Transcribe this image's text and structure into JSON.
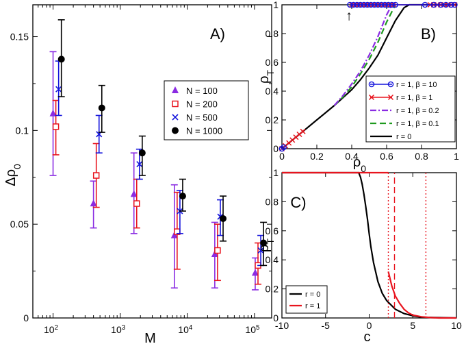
{
  "colors": {
    "purple": "#8a2be2",
    "red": "#e8141e",
    "blue": "#1414dc",
    "black": "#000000",
    "green": "#1e9a1e"
  },
  "chart_data": [
    {
      "type": "scatter",
      "panel": "A)",
      "xlabel": "M",
      "ylabel": "Δρ",
      "ylabel_sub": "0",
      "xscale": "log",
      "xlim": [
        50,
        180000
      ],
      "ylim": [
        0,
        0.167
      ],
      "xticks": [
        {
          "value": 100,
          "base": "10",
          "exp": "2"
        },
        {
          "value": 1000,
          "base": "10",
          "exp": "3"
        },
        {
          "value": 10000,
          "base": "10",
          "exp": "4"
        },
        {
          "value": 100000,
          "base": "10",
          "exp": "5"
        }
      ],
      "yticks": [
        {
          "value": 0,
          "label": "0"
        },
        {
          "value": 0.05,
          "label": "0.05"
        },
        {
          "value": 0.1,
          "label": "0.1"
        },
        {
          "value": 0.15,
          "label": "0.15"
        }
      ],
      "legend_position": "top-right",
      "series": [
        {
          "name": "N = 100",
          "marker": "triangle",
          "color": "#8a2be2",
          "points": [
            {
              "x": 100,
              "y": 0.109,
              "lo": 0.076,
              "hi": 0.142
            },
            {
              "x": 400,
              "y": 0.061,
              "lo": 0.048,
              "hi": 0.073
            },
            {
              "x": 1600,
              "y": 0.066,
              "lo": 0.045,
              "hi": 0.088
            },
            {
              "x": 6400,
              "y": 0.044,
              "lo": 0.016,
              "hi": 0.071
            },
            {
              "x": 25600,
              "y": 0.034,
              "lo": 0.016,
              "hi": 0.051
            },
            {
              "x": 102400,
              "y": 0.024,
              "lo": 0.015,
              "hi": 0.032
            }
          ]
        },
        {
          "name": "N = 200",
          "marker": "square",
          "color": "#e8141e",
          "points": [
            {
              "x": 110,
              "y": 0.102,
              "lo": 0.087,
              "hi": 0.116
            },
            {
              "x": 440,
              "y": 0.076,
              "lo": 0.059,
              "hi": 0.093
            },
            {
              "x": 1760,
              "y": 0.061,
              "lo": 0.048,
              "hi": 0.074
            },
            {
              "x": 7040,
              "y": 0.046,
              "lo": 0.026,
              "hi": 0.067
            },
            {
              "x": 28160,
              "y": 0.036,
              "lo": 0.02,
              "hi": 0.05
            },
            {
              "x": 112640,
              "y": 0.028,
              "lo": 0.018,
              "hi": 0.04
            }
          ]
        },
        {
          "name": "N = 500",
          "marker": "cross",
          "color": "#1414dc",
          "points": [
            {
              "x": 121,
              "y": 0.122,
              "lo": 0.108,
              "hi": 0.137
            },
            {
              "x": 484,
              "y": 0.098,
              "lo": 0.088,
              "hi": 0.108
            },
            {
              "x": 1936,
              "y": 0.082,
              "lo": 0.074,
              "hi": 0.09
            },
            {
              "x": 7744,
              "y": 0.057,
              "lo": 0.045,
              "hi": 0.068
            },
            {
              "x": 30976,
              "y": 0.054,
              "lo": 0.044,
              "hi": 0.063
            },
            {
              "x": 123904,
              "y": 0.036,
              "lo": 0.028,
              "hi": 0.044
            }
          ]
        },
        {
          "name": "N = 1000",
          "marker": "circle",
          "color": "#000000",
          "points": [
            {
              "x": 133,
              "y": 0.138,
              "lo": 0.118,
              "hi": 0.159
            },
            {
              "x": 532,
              "y": 0.112,
              "lo": 0.099,
              "hi": 0.124
            },
            {
              "x": 2128,
              "y": 0.088,
              "lo": 0.076,
              "hi": 0.097
            },
            {
              "x": 8512,
              "y": 0.065,
              "lo": 0.057,
              "hi": 0.074
            },
            {
              "x": 34048,
              "y": 0.053,
              "lo": 0.041,
              "hi": 0.065
            },
            {
              "x": 136192,
              "y": 0.04,
              "lo": 0.028,
              "hi": 0.051
            }
          ]
        }
      ]
    },
    {
      "type": "line",
      "panel": "B)",
      "xlabel": "ρ",
      "xlabel_sub": "0",
      "ylabel": "ρ",
      "ylabel_sub": "T",
      "xlim": [
        0,
        1
      ],
      "ylim": [
        0,
        1
      ],
      "xticks": [
        {
          "value": 0,
          "label": "0"
        },
        {
          "value": 0.2,
          "label": "0.2"
        },
        {
          "value": 0.4,
          "label": "0.4"
        },
        {
          "value": 0.6,
          "label": "0.6"
        },
        {
          "value": 0.8,
          "label": "0.8"
        },
        {
          "value": 1,
          "label": "1"
        }
      ],
      "yticks": [
        {
          "value": 0,
          "label": "0"
        },
        {
          "value": 0.2,
          "label": "0.2"
        },
        {
          "value": 0.4,
          "label": "0.4"
        },
        {
          "value": 0.6,
          "label": "0.6"
        },
        {
          "value": 0.8,
          "label": "0.8"
        },
        {
          "value": 1,
          "label": "1"
        }
      ],
      "annotation": {
        "text": "↑",
        "x": 0.385,
        "y": 0.93
      },
      "legend_position": "bottom-right",
      "series": [
        {
          "name": "r = 0",
          "style": "solid",
          "color": "#000000",
          "x": [
            0,
            0.05,
            0.1,
            0.15,
            0.2,
            0.25,
            0.3,
            0.35,
            0.4,
            0.45,
            0.5,
            0.55,
            0.6,
            0.65,
            0.7,
            0.73,
            1.0
          ],
          "y": [
            0,
            0.05,
            0.1,
            0.15,
            0.2,
            0.25,
            0.3,
            0.355,
            0.41,
            0.48,
            0.56,
            0.65,
            0.77,
            0.89,
            0.98,
            1.0,
            1.0
          ]
        },
        {
          "name": "r = 1, β = 0.1",
          "style": "dashed",
          "color": "#1e9a1e",
          "x": [
            0.3,
            0.35,
            0.4,
            0.45,
            0.5,
            0.55,
            0.6,
            0.65
          ],
          "y": [
            0.3,
            0.36,
            0.43,
            0.52,
            0.62,
            0.74,
            0.88,
            1.0
          ]
        },
        {
          "name": "r = 1, β = 0.2",
          "style": "dashdot",
          "color": "#8a2be2",
          "x": [
            0.3,
            0.35,
            0.4,
            0.45,
            0.5,
            0.55,
            0.6,
            0.63
          ],
          "y": [
            0.3,
            0.37,
            0.45,
            0.54,
            0.65,
            0.78,
            0.93,
            1.0
          ]
        },
        {
          "name": "r = 1, β = 1",
          "style": "markers-x",
          "color": "#e8141e",
          "x": [
            0.0,
            0.02,
            0.04,
            0.06,
            0.08,
            0.1,
            0.12,
            0.4,
            0.42,
            0.44,
            0.46,
            0.48,
            0.5,
            0.52,
            0.54,
            0.56,
            0.58,
            0.6,
            0.62,
            0.64,
            0.85,
            0.87,
            0.89,
            0.91,
            0.93,
            0.95,
            0.97,
            0.99
          ],
          "y": [
            0.0,
            0.02,
            0.04,
            0.06,
            0.08,
            0.1,
            0.12,
            1,
            1,
            1,
            1,
            1,
            1,
            1,
            1,
            1,
            1,
            1,
            1,
            1,
            1,
            1,
            1,
            1,
            1,
            1,
            1,
            1
          ]
        },
        {
          "name": "r = 1, β = 10",
          "style": "markers-o",
          "color": "#1414dc",
          "x": [
            0.0,
            0.01,
            0.39,
            0.41,
            0.43,
            0.45,
            0.47,
            0.49,
            0.51,
            0.53,
            0.55,
            0.57,
            0.59,
            0.61,
            0.63,
            0.65,
            0.82,
            0.87,
            0.91,
            0.94,
            0.97,
            0.99
          ],
          "y": [
            0.0,
            0.01,
            1,
            1,
            1,
            1,
            1,
            1,
            1,
            1,
            1,
            1,
            1,
            1,
            1,
            1,
            1,
            1,
            1,
            1,
            1,
            1
          ]
        }
      ],
      "legend_order": [
        {
          "name": "r = 1, β = 10",
          "style": "markers-o",
          "color": "#1414dc"
        },
        {
          "name": "r = 1, β = 1",
          "style": "markers-x",
          "color": "#e8141e"
        },
        {
          "name": "r = 1, β = 0.2",
          "style": "dashdot",
          "color": "#8a2be2"
        },
        {
          "name": "r = 1, β = 0.1",
          "style": "dashed",
          "color": "#1e9a1e"
        },
        {
          "name": "r = 0",
          "style": "solid",
          "color": "#000000"
        }
      ]
    },
    {
      "type": "line",
      "panel": "C)",
      "xlabel": "c",
      "ylabel": "ρ",
      "ylabel_sub": "T",
      "xlim": [
        -10,
        10
      ],
      "ylim": [
        0,
        1
      ],
      "xticks": [
        {
          "value": -10,
          "label": "-10"
        },
        {
          "value": -5,
          "label": "-5"
        },
        {
          "value": 0,
          "label": "0"
        },
        {
          "value": 5,
          "label": "5"
        },
        {
          "value": 10,
          "label": "10"
        }
      ],
      "yticks": [
        {
          "value": 0,
          "label": "0"
        },
        {
          "value": 0.2,
          "label": "0.2"
        },
        {
          "value": 0.4,
          "label": "0.4"
        },
        {
          "value": 0.6,
          "label": "0.6"
        },
        {
          "value": 0.8,
          "label": "0.8"
        },
        {
          "value": 1,
          "label": "1"
        }
      ],
      "legend_position": "bottom-left",
      "series": [
        {
          "name": "r = 0",
          "style": "solid",
          "color": "#000000",
          "x": [
            -10,
            -1.2,
            -1.0,
            -0.8,
            -0.6,
            -0.4,
            -0.2,
            0,
            0.2,
            0.5,
            1.0,
            1.5,
            2.0,
            3.0,
            4.0,
            5.0,
            6.0,
            10
          ],
          "y": [
            1.0,
            1.0,
            0.97,
            0.92,
            0.85,
            0.77,
            0.68,
            0.58,
            0.49,
            0.38,
            0.25,
            0.17,
            0.12,
            0.06,
            0.03,
            0.015,
            0.005,
            0.0
          ]
        },
        {
          "name": "r = 1",
          "style": "solid",
          "color": "#e8141e",
          "x": [
            -10,
            2.2
          ],
          "y": [
            1.0,
            1.0
          ]
        },
        {
          "name": "r = 1 lower branch",
          "style": "solid",
          "color": "#e8141e",
          "x": [
            2.2,
            2.6,
            3.0,
            3.5,
            4.0,
            4.5,
            5.0,
            6.0,
            7.0,
            8.0,
            10
          ],
          "y": [
            0.32,
            0.22,
            0.15,
            0.1,
            0.06,
            0.035,
            0.02,
            0.008,
            0.003,
            0.0,
            0.0
          ]
        },
        {
          "name": "r = 1 dotted left",
          "style": "dotted",
          "color": "#e8141e",
          "x": [
            2.2,
            2.2
          ],
          "y": [
            0.0,
            1.0
          ]
        },
        {
          "name": "r = 1 dashed",
          "style": "dashed",
          "color": "#e8141e",
          "x": [
            2.9,
            2.9
          ],
          "y": [
            0.0,
            1.0
          ]
        },
        {
          "name": "r = 1 dotted right",
          "style": "dotted",
          "color": "#e8141e",
          "x": [
            6.5,
            6.5
          ],
          "y": [
            0.0,
            1.0
          ]
        }
      ],
      "legend_order": [
        {
          "name": "r = 0",
          "style": "solid",
          "color": "#000000"
        },
        {
          "name": "r = 1",
          "style": "solid",
          "color": "#e8141e"
        }
      ]
    }
  ]
}
